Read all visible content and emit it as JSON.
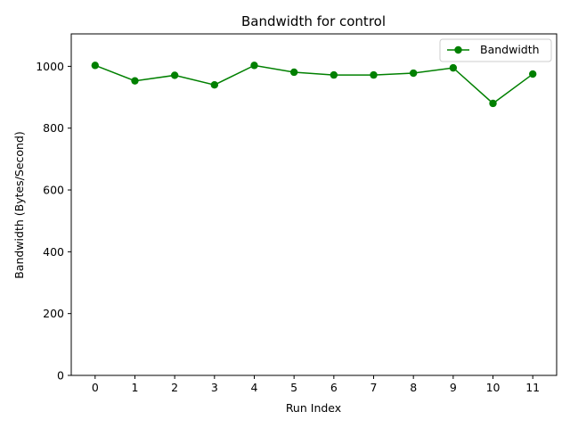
{
  "chart_data": {
    "type": "line",
    "title": "Bandwidth for control",
    "xlabel": "Run Index",
    "ylabel": "Bandwidth (Bytes/Second)",
    "x": [
      0,
      1,
      2,
      3,
      4,
      5,
      6,
      7,
      8,
      9,
      10,
      11
    ],
    "xticks": [
      0,
      1,
      2,
      3,
      4,
      5,
      6,
      7,
      8,
      9,
      10,
      11
    ],
    "yticks": [
      0,
      200,
      400,
      600,
      800,
      1000
    ],
    "xlim": [
      -0.6,
      11.6
    ],
    "ylim": [
      0,
      1105
    ],
    "grid": false,
    "legend_position": "top-right",
    "series": [
      {
        "name": "Bandwidth",
        "color": "#008000",
        "marker": "circle",
        "values": [
          1003,
          953,
          971,
          940,
          1003,
          981,
          972,
          972,
          978,
          995,
          880,
          975
        ]
      }
    ]
  }
}
